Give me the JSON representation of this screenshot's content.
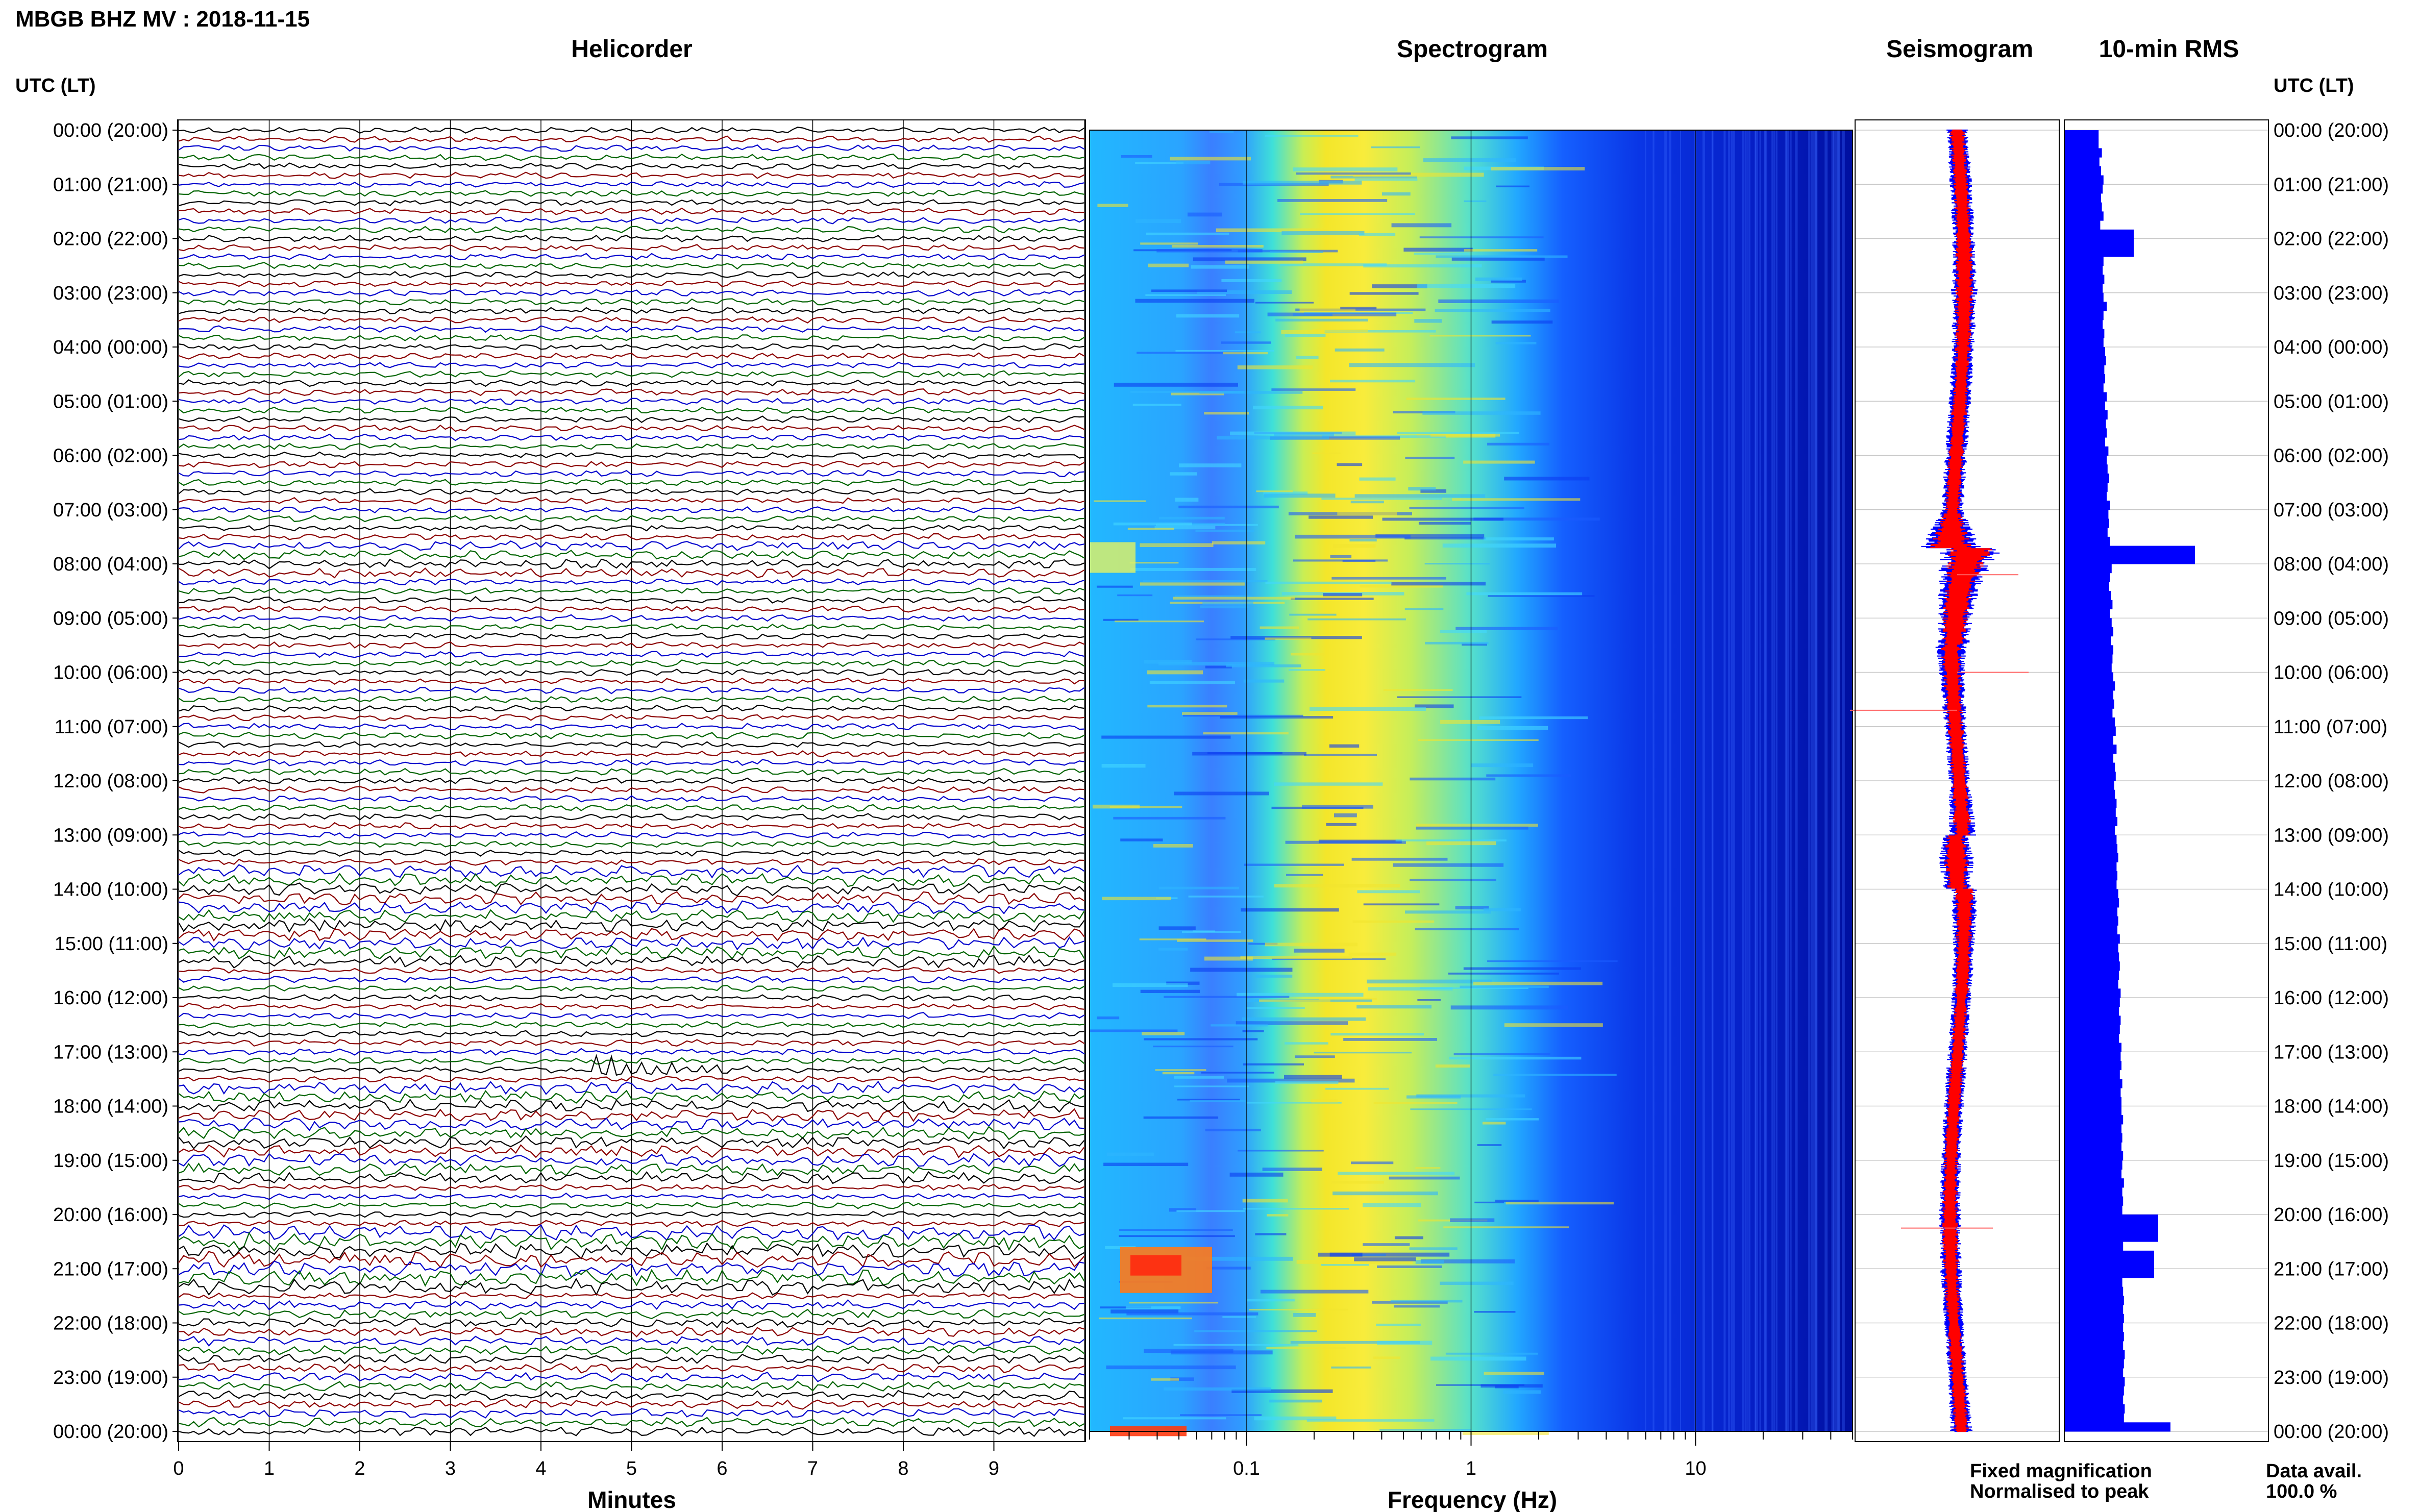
{
  "header": {
    "title": "MBGB BHZ MV : 2018-11-15",
    "utc_left": "UTC (LT)",
    "utc_right": "UTC (LT)"
  },
  "panels": {
    "helicorder": "Helicorder",
    "spectrogram": "Spectrogram",
    "seismogram": "Seismogram",
    "rms": "10-min RMS"
  },
  "axes": {
    "minutes_label": "Minutes",
    "frequency_label": "Frequency (Hz)",
    "minute_ticks": [
      "0",
      "1",
      "2",
      "3",
      "4",
      "5",
      "6",
      "7",
      "8",
      "9"
    ],
    "frequency_ticks": [
      "0.1",
      "1",
      "10"
    ]
  },
  "time_labels": [
    "00:00 (20:00)",
    "01:00 (21:00)",
    "02:00 (22:00)",
    "03:00 (23:00)",
    "04:00 (00:00)",
    "05:00 (01:00)",
    "06:00 (02:00)",
    "07:00 (03:00)",
    "08:00 (04:00)",
    "09:00 (05:00)",
    "10:00 (06:00)",
    "11:00 (07:00)",
    "12:00 (08:00)",
    "13:00 (09:00)",
    "14:00 (10:00)",
    "15:00 (11:00)",
    "16:00 (12:00)",
    "17:00 (13:00)",
    "18:00 (14:00)",
    "19:00 (15:00)",
    "20:00 (16:00)",
    "21:00 (17:00)",
    "22:00 (18:00)",
    "23:00 (19:00)",
    "00:00 (20:00)"
  ],
  "legend": {
    "fixed": "Fixed magnification",
    "normalised": "Normalised to peak",
    "fixed_color": "#0000ff",
    "normalised_color": "#ff0000"
  },
  "data_avail": {
    "label": "Data avail.",
    "value": "100.0 %"
  },
  "colors": {
    "trace_cycle": [
      "#000000",
      "#8b0000",
      "#0000cd",
      "#006400"
    ],
    "rms_bar": "#0000ff",
    "seis_fixed": "#0000ff",
    "seis_norm": "#ff0000"
  },
  "chart_data": [
    {
      "type": "line",
      "title": "Helicorder",
      "xlabel": "Minutes",
      "xlim": [
        0,
        10
      ],
      "rows": 144,
      "row_minutes": 10,
      "events": [
        {
          "row": 104,
          "minute": 4.6,
          "amplitude": "high"
        },
        {
          "row": 123,
          "minute": 0.5,
          "amplitude": "medium"
        },
        {
          "row": 88,
          "minute": 1.0,
          "amplitude": "medium"
        }
      ]
    },
    {
      "type": "heatmap",
      "title": "Spectrogram",
      "xlabel": "Frequency (Hz)",
      "xscale": "log",
      "xlim": [
        0.02,
        50
      ],
      "ylim_hours": [
        0,
        24
      ],
      "bands": [
        {
          "freq_min": 0.02,
          "freq_max": 0.08,
          "level": "medium-low"
        },
        {
          "freq_min": 0.15,
          "freq_max": 0.5,
          "level": "high"
        },
        {
          "freq_min": 2,
          "freq_max": 50,
          "level": "low"
        }
      ]
    },
    {
      "type": "line",
      "title": "Seismogram",
      "series": [
        {
          "name": "Fixed magnification"
        },
        {
          "name": "Normalised to peak"
        }
      ],
      "hours": [
        0,
        1,
        2,
        3,
        4,
        5,
        6,
        7,
        7.75,
        8,
        8.5,
        9,
        10,
        11,
        12,
        13,
        13.5,
        14,
        15,
        16,
        17,
        18,
        19,
        20,
        21,
        22,
        23,
        24
      ],
      "envelope": [
        0.5,
        0.5,
        0.5,
        0.6,
        0.5,
        0.5,
        0.5,
        0.5,
        1.4,
        1.2,
        0.9,
        0.8,
        0.6,
        0.5,
        0.5,
        0.6,
        0.8,
        0.6,
        0.5,
        0.45,
        0.45,
        0.45,
        0.45,
        0.5,
        0.5,
        0.45,
        0.45,
        0.5
      ]
    },
    {
      "type": "bar",
      "title": "10-min RMS",
      "orientation": "horizontal",
      "values": [
        0.42,
        0.42,
        0.46,
        0.43,
        0.45,
        0.48,
        0.47,
        0.45,
        0.46,
        0.48,
        0.44,
        0.45,
        0.45,
        0.46,
        0.48,
        0.47,
        0.49,
        0.47,
        0.48,
        0.52,
        0.48,
        0.47,
        0.49,
        0.48,
        0.5,
        0.51,
        0.49,
        0.5,
        0.48,
        0.52,
        0.5,
        0.53,
        0.51,
        0.52,
        0.5,
        0.54,
        0.52,
        0.53,
        0.55,
        0.53,
        0.52,
        0.56,
        0.54,
        0.55,
        0.53,
        0.56,
        0.57,
        0.55,
        0.58,
        0.56,
        0.55,
        0.57,
        0.59,
        0.56,
        0.58,
        0.6,
        0.57,
        0.6,
        0.59,
        0.58,
        0.6,
        0.62,
        0.6,
        0.61,
        0.59,
        0.62,
        0.63,
        0.6,
        0.64,
        0.6,
        0.62,
        0.63,
        0.61,
        0.62,
        0.64,
        0.63,
        0.65,
        0.62,
        0.64,
        0.65,
        0.66,
        0.64,
        0.65,
        0.64,
        0.66,
        0.67,
        0.65,
        0.66,
        0.65,
        0.68,
        0.66,
        0.67,
        0.68,
        0.67,
        0.66,
        0.69,
        0.68,
        0.67,
        0.69,
        0.68,
        0.67,
        0.7,
        0.69,
        0.7,
        0.68,
        0.71,
        0.69,
        0.7,
        0.7,
        0.72,
        0.7,
        0.71,
        0.7,
        0.72,
        0.71,
        0.7,
        0.73,
        0.71,
        0.72,
        0.71,
        0.72,
        0.73,
        0.71,
        0.72,
        0.73,
        0.72,
        0.74,
        0.71,
        0.72,
        0.73,
        0.72,
        0.73,
        0.72,
        0.73,
        0.72,
        0.74,
        0.73,
        0.72,
        0.74,
        0.73,
        0.72,
        0.74,
        0.73,
        1.0
      ],
      "peaks": [
        {
          "hour": 2.0,
          "value": 0.85
        },
        {
          "hour": 7.8,
          "value": 1.6
        },
        {
          "hour": 20.2,
          "value": 1.15
        },
        {
          "hour": 20.8,
          "value": 1.1
        },
        {
          "hour": 24.0,
          "value": 1.3
        }
      ]
    }
  ]
}
